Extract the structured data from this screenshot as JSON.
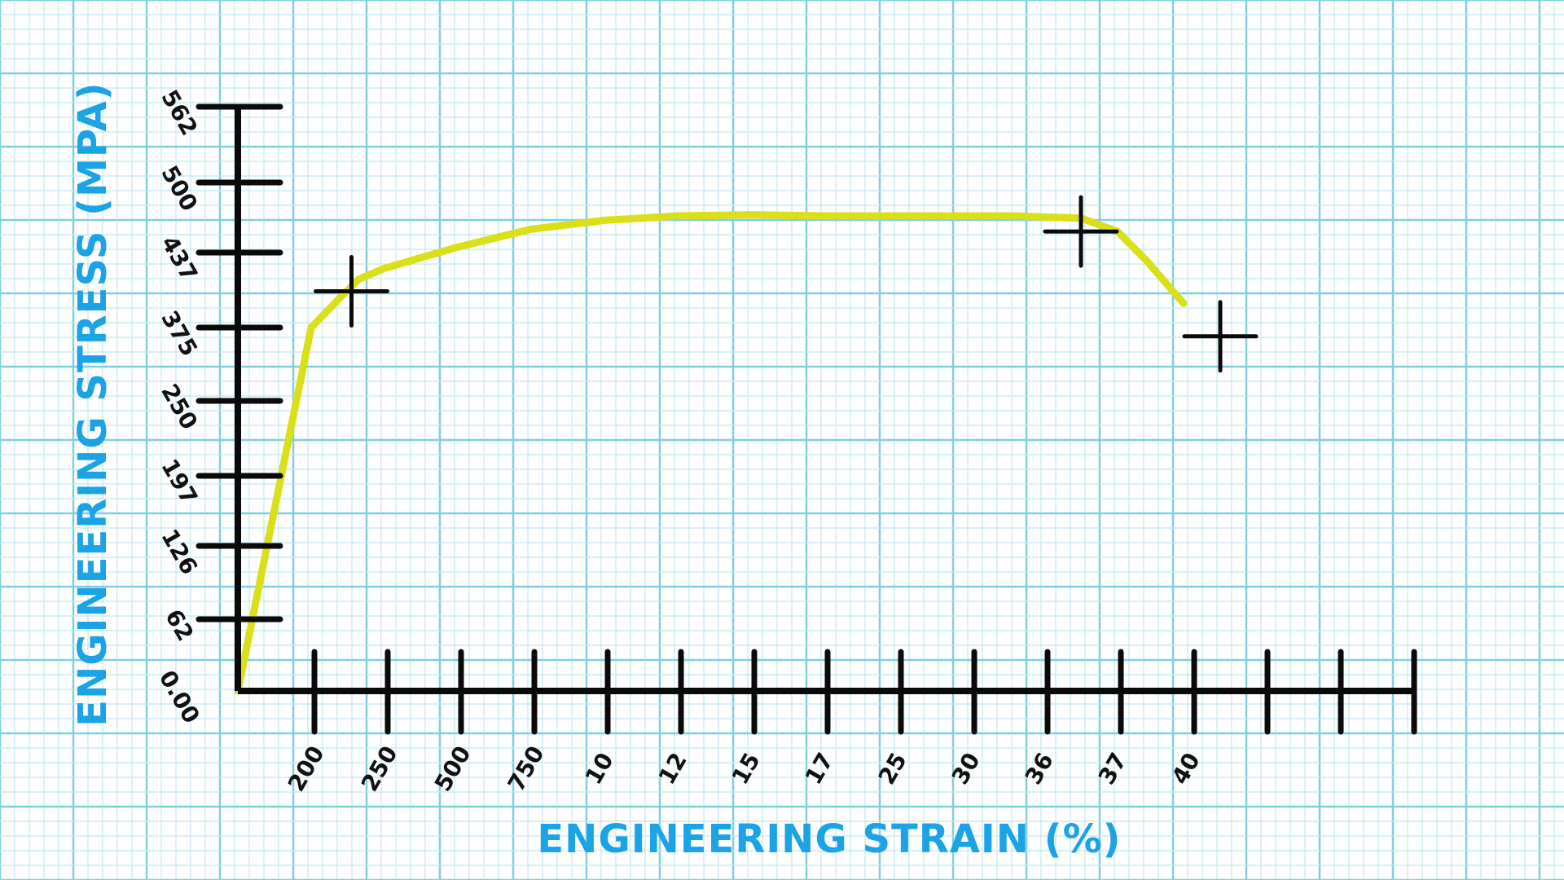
{
  "chart_data": {
    "type": "line",
    "xlabel": "ENGINEERING STRAIN (%)",
    "ylabel": "ENGINEERING STRESS (MPA)",
    "x_ticks": [
      "200",
      "250",
      "500",
      "750",
      "10",
      "12",
      "15",
      "17",
      "25",
      "30",
      "36",
      "37",
      "40"
    ],
    "y_ticks": [
      "0.00",
      "62",
      "126",
      "197",
      "250",
      "375",
      "437",
      "500",
      "562"
    ],
    "series": [
      {
        "x_tick_positions": [
          0,
          1.0,
          1.4,
          1.65,
          2.0,
          3.0,
          4.0,
          5.0,
          6.0,
          7.0,
          8.0,
          9.0,
          10.0,
          10.6,
          11.0,
          11.5,
          12.0,
          12.4,
          12.9
        ],
        "y": [
          0,
          375,
          400,
          415,
          424,
          442,
          458,
          466,
          470,
          471,
          470,
          470,
          470,
          470,
          469,
          468,
          456,
          430,
          395
        ]
      }
    ],
    "markers": [
      {
        "x_tick_position": 1.55,
        "y": 405
      },
      {
        "x_tick_position": 11.5,
        "y": 456
      },
      {
        "x_tick_position": 13.4,
        "y": 360
      }
    ],
    "grid": true,
    "colors": {
      "curve": "#d9e01a",
      "axis": "#0a0a0a",
      "axis_title": "#1ba3e6",
      "grid_major": "#7fcfe0",
      "grid_minor": "#bfe8f0"
    }
  }
}
